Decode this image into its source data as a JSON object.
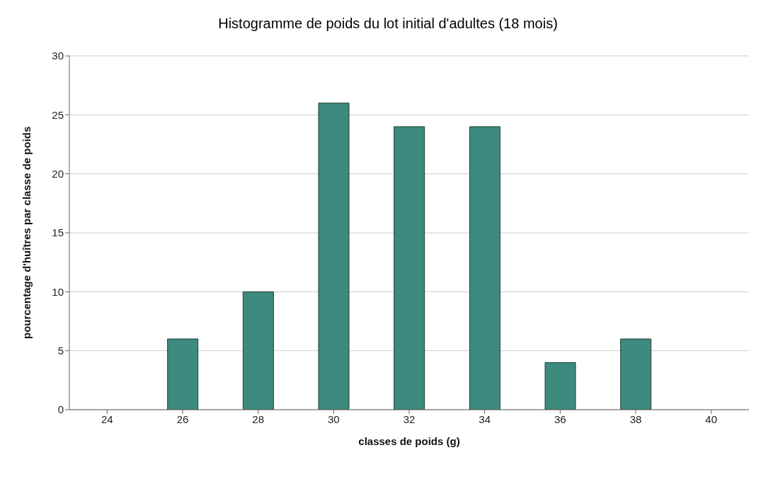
{
  "chart_data": {
    "type": "bar",
    "title": "Histogramme de poids du lot initial d'adultes (18 mois)",
    "xlabel": "classes de poids (g)",
    "ylabel": "pourcentage d'huîtres par classe de poids",
    "categories": [
      "24",
      "26",
      "28",
      "30",
      "32",
      "34",
      "36",
      "38",
      "40"
    ],
    "values": [
      0,
      6,
      10,
      26,
      24,
      24,
      4,
      6,
      0
    ],
    "color": "#3d8a7e",
    "ylim": [
      0,
      30
    ],
    "yticks": [
      0,
      5,
      10,
      15,
      20,
      25,
      30
    ],
    "grid": "y"
  }
}
